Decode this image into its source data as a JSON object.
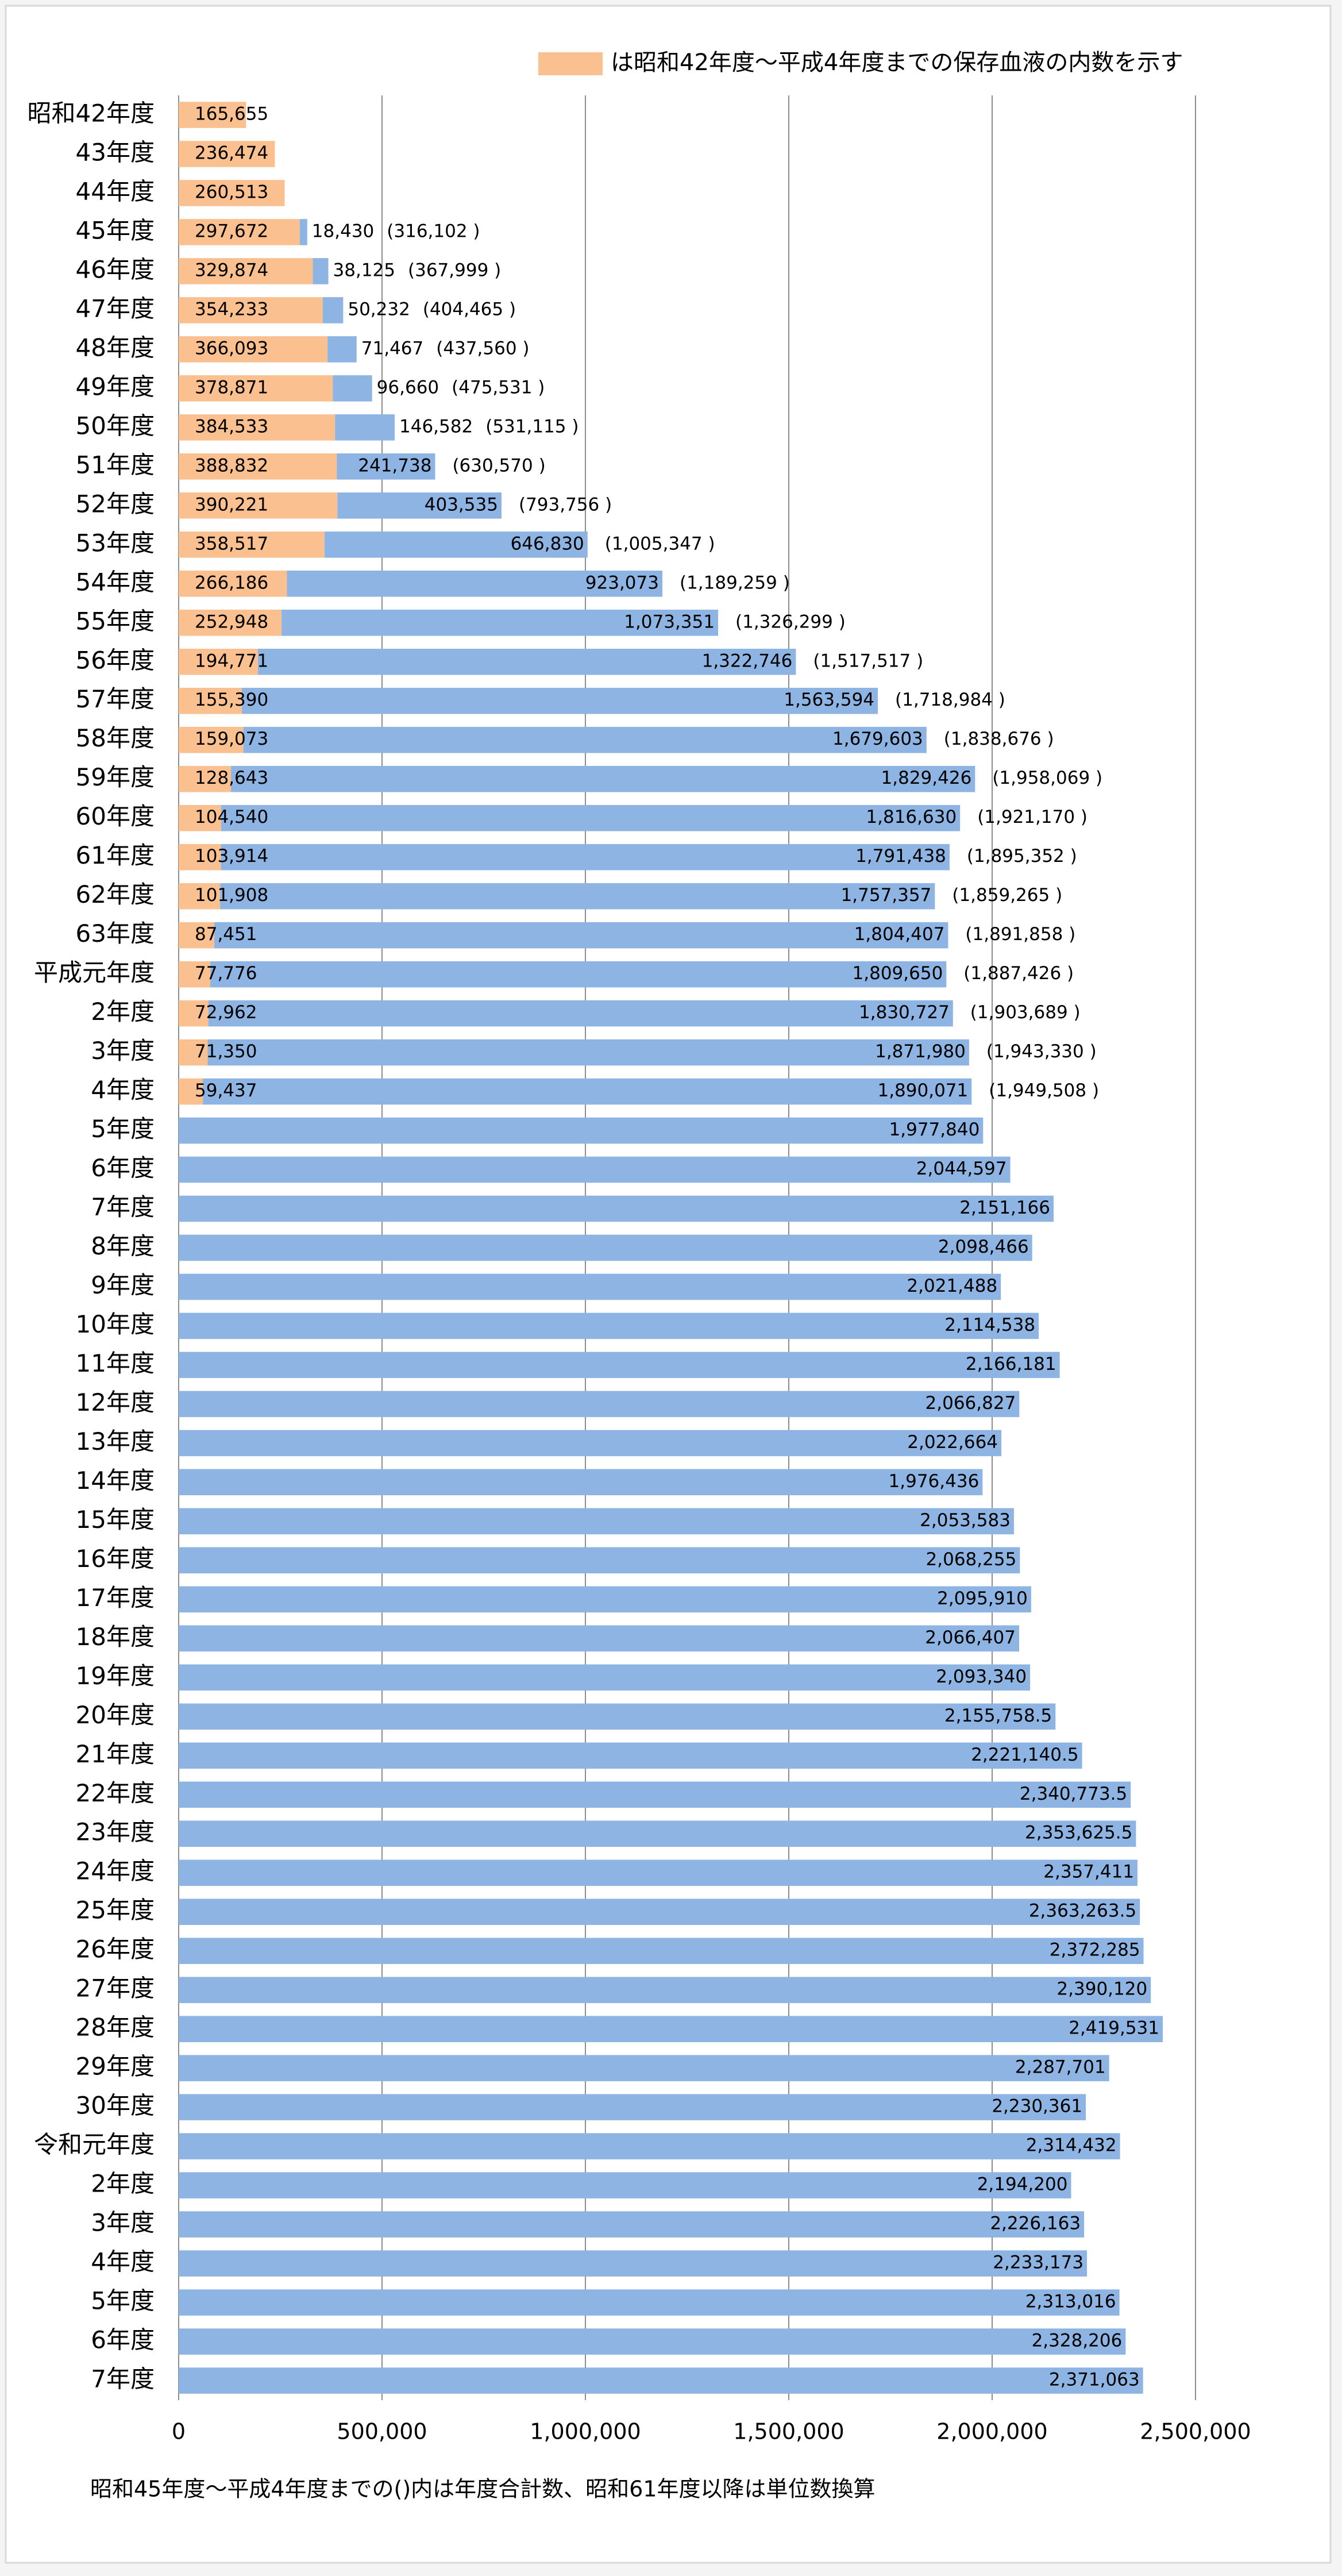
{
  "chart_data": {
    "type": "stacked-bar-horizontal",
    "categories": [
      "昭和42年度",
      "43年度",
      "44年度",
      "45年度",
      "46年度",
      "47年度",
      "48年度",
      "49年度",
      "50年度",
      "51年度",
      "52年度",
      "53年度",
      "54年度",
      "55年度",
      "56年度",
      "57年度",
      "58年度",
      "59年度",
      "60年度",
      "61年度",
      "62年度",
      "63年度",
      "平成元年度",
      "2年度",
      "3年度",
      "4年度",
      "5年度",
      "6年度",
      "7年度",
      "8年度",
      "9年度",
      "10年度",
      "11年度",
      "12年度",
      "13年度",
      "14年度",
      "15年度",
      "16年度",
      "17年度",
      "18年度",
      "19年度",
      "20年度",
      "21年度",
      "22年度",
      "23年度",
      "24年度",
      "25年度",
      "26年度",
      "27年度",
      "28年度",
      "29年度",
      "30年度",
      "令和元年度",
      "2年度",
      "3年度",
      "4年度",
      "5年度",
      "6年度",
      "7年度"
    ],
    "series": [
      {
        "name": "は昭和42年度～平成4年度までの保存血液の内数を示す",
        "color": "#fac090",
        "values": [
          165655,
          236474,
          260513,
          297672,
          329874,
          354233,
          366093,
          378871,
          384533,
          388832,
          390221,
          358517,
          266186,
          252948,
          194771,
          155390,
          159073,
          128643,
          104540,
          103914,
          101908,
          87451,
          77776,
          72962,
          71350,
          59437,
          null,
          null,
          null,
          null,
          null,
          null,
          null,
          null,
          null,
          null,
          null,
          null,
          null,
          null,
          null,
          null,
          null,
          null,
          null,
          null,
          null,
          null,
          null,
          null,
          null,
          null,
          null,
          null,
          null,
          null,
          null,
          null,
          null
        ],
        "value_labels": [
          "165,655",
          "236,474",
          "260,513",
          "297,672",
          "329,874",
          "354,233",
          "366,093",
          "378,871",
          "384,533",
          "388,832",
          "390,221",
          "358,517",
          "266,186",
          "252,948",
          "194,771",
          "155,390",
          "159,073",
          "128,643",
          "104,540",
          "103,914",
          "101,908",
          "87,451",
          "77,776",
          "72,962",
          "71,350",
          "59,437",
          null,
          null,
          null,
          null,
          null,
          null,
          null,
          null,
          null,
          null,
          null,
          null,
          null,
          null,
          null,
          null,
          null,
          null,
          null,
          null,
          null,
          null,
          null,
          null,
          null,
          null,
          null,
          null,
          null,
          null,
          null,
          null,
          null
        ]
      },
      {
        "color": "#8db4e2",
        "values": [
          null,
          null,
          null,
          18430,
          38125,
          50232,
          71467,
          96660,
          146582,
          241738,
          403535,
          646830,
          923073,
          1073351,
          1322746,
          1563594,
          1679603,
          1829426,
          1816630,
          1791438,
          1757357,
          1804407,
          1809650,
          1830727,
          1871980,
          1890071,
          1977840,
          2044597,
          2151166,
          2098466,
          2021488,
          2114538,
          2166181,
          2066827,
          2022664,
          1976436,
          2053583,
          2068255,
          2095910,
          2066407,
          2093340,
          2155758.5,
          2221140.5,
          2340773.5,
          2353625.5,
          2357411,
          2363263.5,
          2372285,
          2390120,
          2419531,
          2287701,
          2230361,
          2314432,
          2194200,
          2226163,
          2233173,
          2313016,
          2328206,
          2371063
        ],
        "value_labels": [
          null,
          null,
          null,
          "18,430",
          "38,125",
          "50,232",
          "71,467",
          "96,660",
          "146,582",
          "241,738",
          "403,535",
          "646,830",
          "923,073",
          "1,073,351",
          "1,322,746",
          "1,563,594",
          "1,679,603",
          "1,829,426",
          "1,816,630",
          "1,791,438",
          "1,757,357",
          "1,804,407",
          "1,809,650",
          "1,830,727",
          "1,871,980",
          "1,890,071",
          "1,977,840",
          "2,044,597",
          "2,151,166",
          "2,098,466",
          "2,021,488",
          "2,114,538",
          "2,166,181",
          "2,066,827",
          "2,022,664",
          "1,976,436",
          "2,053,583",
          "2,068,255",
          "2,095,910",
          "2,066,407",
          "2,093,340",
          "2,155,758.5",
          "2,221,140.5",
          "2,340,773.5",
          "2,353,625.5",
          "2,357,411",
          "2,363,263.5",
          "2,372,285",
          "2,390,120",
          "2,419,531",
          "2,287,701",
          "2,230,361",
          "2,314,432",
          "2,194,200",
          "2,226,163",
          "2,233,173",
          "2,313,016",
          "2,328,206",
          "2,371,063"
        ]
      }
    ],
    "totals": {
      "values": [
        null,
        null,
        null,
        316102,
        367999,
        404465,
        437560,
        475531,
        531115,
        630570,
        793756,
        1005347,
        1189259,
        1326299,
        1517517,
        1718984,
        1838676,
        1958069,
        1921170,
        1895352,
        1859265,
        1891858,
        1887426,
        1903689,
        1943330,
        1949508,
        null,
        null,
        null,
        null,
        null,
        null,
        null,
        null,
        null,
        null,
        null,
        null,
        null,
        null,
        null,
        null,
        null,
        null,
        null,
        null,
        null,
        null,
        null,
        null,
        null,
        null,
        null,
        null,
        null,
        null,
        null,
        null,
        null
      ],
      "value_labels": [
        null,
        null,
        null,
        "(316,102 )",
        "(367,999 )",
        "(404,465 )",
        "(437,560 )",
        "(475,531 )",
        "(531,115 )",
        "(630,570 )",
        "(793,756 )",
        "(1,005,347 )",
        "(1,189,259 )",
        "(1,326,299 )",
        "(1,517,517 )",
        "(1,718,984 )",
        "(1,838,676 )",
        "(1,958,069 )",
        "(1,921,170 )",
        "(1,895,352 )",
        "(1,859,265 )",
        "(1,891,858 )",
        "(1,887,426 )",
        "(1,903,689 )",
        "(1,943,330 )",
        "(1,949,508 )",
        null,
        null,
        null,
        null,
        null,
        null,
        null,
        null,
        null,
        null,
        null,
        null,
        null,
        null,
        null,
        null,
        null,
        null,
        null,
        null,
        null,
        null,
        null,
        null,
        null,
        null,
        null,
        null,
        null,
        null,
        null,
        null,
        null
      ]
    },
    "xlim": [
      0,
      2500000
    ],
    "xticks": [
      0,
      {
        "value": 500000,
        "label": "500,000"
      },
      {
        "value": 1000000,
        "label": "1,000,000"
      },
      {
        "value": 1500000,
        "label": "1,500,000"
      },
      {
        "value": 2000000,
        "label": "2,000,000"
      },
      {
        "value": 2500000,
        "label": "2,500,000"
      }
    ],
    "grid": true,
    "legend": "top-right",
    "footnote": "昭和45年度～平成4年度までの()内は年度合計数、昭和61年度以降は単位数換算"
  }
}
